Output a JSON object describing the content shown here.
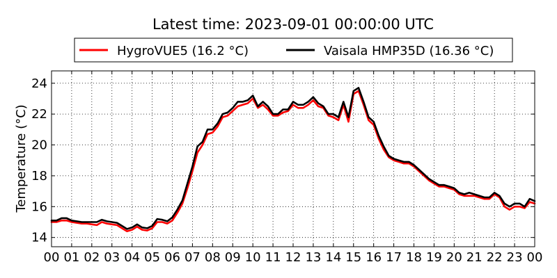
{
  "chart_data": {
    "type": "line",
    "title": "Latest time: 2023-09-01 00:00:00 UTC",
    "xlabel": "",
    "ylabel": "Temperature (°C)",
    "xlim": [
      0,
      24
    ],
    "ylim": [
      13.4,
      24.8
    ],
    "x_ticks": [
      0,
      1,
      2,
      3,
      4,
      5,
      6,
      7,
      8,
      9,
      10,
      11,
      12,
      13,
      14,
      15,
      16,
      17,
      18,
      19,
      20,
      21,
      22,
      23,
      24
    ],
    "x_tick_labels": [
      "00",
      "01",
      "02",
      "03",
      "04",
      "05",
      "06",
      "07",
      "08",
      "09",
      "10",
      "11",
      "12",
      "13",
      "14",
      "15",
      "16",
      "17",
      "18",
      "19",
      "20",
      "21",
      "22",
      "23",
      "00"
    ],
    "y_ticks": [
      14,
      16,
      18,
      20,
      22,
      24
    ],
    "grid": true,
    "legend_position": "top-center",
    "series": [
      {
        "name": "HygroVUE5 (16.2 °C)",
        "color": "#ff0000",
        "x": [
          0,
          0.25,
          0.5,
          0.75,
          1,
          1.25,
          1.5,
          1.75,
          2,
          2.25,
          2.5,
          2.75,
          3,
          3.25,
          3.5,
          3.75,
          4,
          4.25,
          4.5,
          4.75,
          5,
          5.25,
          5.5,
          5.75,
          6,
          6.25,
          6.5,
          6.75,
          7,
          7.25,
          7.5,
          7.75,
          8,
          8.25,
          8.5,
          8.75,
          9,
          9.25,
          9.5,
          9.75,
          10,
          10.25,
          10.5,
          10.75,
          11,
          11.25,
          11.5,
          11.75,
          12,
          12.25,
          12.5,
          12.75,
          13,
          13.25,
          13.5,
          13.75,
          14,
          14.25,
          14.5,
          14.75,
          15,
          15.25,
          15.5,
          15.75,
          16,
          16.25,
          16.5,
          16.75,
          17,
          17.25,
          17.5,
          17.75,
          18,
          18.25,
          18.5,
          18.75,
          19,
          19.25,
          19.5,
          19.75,
          20,
          20.25,
          20.5,
          20.75,
          21,
          21.25,
          21.5,
          21.75,
          22,
          22.25,
          22.5,
          22.75,
          23,
          23.25,
          23.5,
          23.75,
          24
        ],
        "values": [
          15.0,
          15.0,
          15.1,
          15.1,
          15.0,
          14.95,
          14.9,
          14.9,
          14.85,
          14.8,
          15.0,
          14.9,
          14.85,
          14.8,
          14.6,
          14.4,
          14.5,
          14.7,
          14.5,
          14.45,
          14.6,
          15.0,
          15.0,
          14.9,
          15.1,
          15.6,
          16.2,
          17.2,
          18.3,
          19.5,
          20.0,
          20.7,
          20.8,
          21.2,
          21.8,
          21.9,
          22.2,
          22.5,
          22.6,
          22.7,
          23.0,
          22.4,
          22.6,
          22.3,
          21.9,
          21.9,
          22.1,
          22.2,
          22.6,
          22.4,
          22.4,
          22.6,
          22.9,
          22.5,
          22.4,
          21.9,
          21.8,
          21.6,
          22.6,
          21.5,
          23.3,
          23.5,
          22.6,
          21.6,
          21.3,
          20.4,
          19.7,
          19.2,
          19.0,
          18.9,
          18.8,
          18.8,
          18.6,
          18.3,
          18.0,
          17.7,
          17.5,
          17.3,
          17.3,
          17.2,
          17.1,
          16.8,
          16.7,
          16.7,
          16.7,
          16.6,
          16.5,
          16.5,
          16.8,
          16.6,
          16.0,
          15.8,
          16.0,
          16.0,
          15.9,
          16.3,
          16.2
        ]
      },
      {
        "name": "Vaisala HMP35D (16.36 °C)",
        "color": "#000000",
        "x": [
          0,
          0.25,
          0.5,
          0.75,
          1,
          1.25,
          1.5,
          1.75,
          2,
          2.25,
          2.5,
          2.75,
          3,
          3.25,
          3.5,
          3.75,
          4,
          4.25,
          4.5,
          4.75,
          5,
          5.25,
          5.5,
          5.75,
          6,
          6.25,
          6.5,
          6.75,
          7,
          7.25,
          7.5,
          7.75,
          8,
          8.25,
          8.5,
          8.75,
          9,
          9.25,
          9.5,
          9.75,
          10,
          10.25,
          10.5,
          10.75,
          11,
          11.25,
          11.5,
          11.75,
          12,
          12.25,
          12.5,
          12.75,
          13,
          13.25,
          13.5,
          13.75,
          14,
          14.25,
          14.5,
          14.75,
          15,
          15.25,
          15.5,
          15.75,
          16,
          16.25,
          16.5,
          16.75,
          17,
          17.25,
          17.5,
          17.75,
          18,
          18.25,
          18.5,
          18.75,
          19,
          19.25,
          19.5,
          19.75,
          20,
          20.25,
          20.5,
          20.75,
          21,
          21.25,
          21.5,
          21.75,
          22,
          22.25,
          22.5,
          22.75,
          23,
          23.25,
          23.5,
          23.75,
          24
        ],
        "values": [
          15.1,
          15.1,
          15.25,
          15.25,
          15.1,
          15.05,
          15.0,
          15.0,
          15.0,
          15.0,
          15.15,
          15.05,
          15.0,
          14.95,
          14.75,
          14.55,
          14.65,
          14.85,
          14.65,
          14.6,
          14.75,
          15.2,
          15.15,
          15.05,
          15.3,
          15.8,
          16.4,
          17.5,
          18.6,
          19.9,
          20.2,
          21.0,
          21.0,
          21.4,
          22.0,
          22.1,
          22.4,
          22.8,
          22.8,
          22.9,
          23.2,
          22.5,
          22.8,
          22.5,
          22.0,
          22.0,
          22.3,
          22.3,
          22.8,
          22.6,
          22.6,
          22.8,
          23.1,
          22.7,
          22.5,
          22.0,
          22.0,
          21.8,
          22.8,
          21.8,
          23.5,
          23.7,
          22.8,
          21.8,
          21.5,
          20.6,
          19.9,
          19.3,
          19.1,
          19.0,
          18.9,
          18.9,
          18.7,
          18.4,
          18.1,
          17.8,
          17.6,
          17.4,
          17.4,
          17.3,
          17.2,
          16.9,
          16.8,
          16.9,
          16.8,
          16.7,
          16.6,
          16.6,
          16.9,
          16.7,
          16.2,
          16.0,
          16.2,
          16.2,
          16.0,
          16.5,
          16.36
        ]
      }
    ]
  }
}
